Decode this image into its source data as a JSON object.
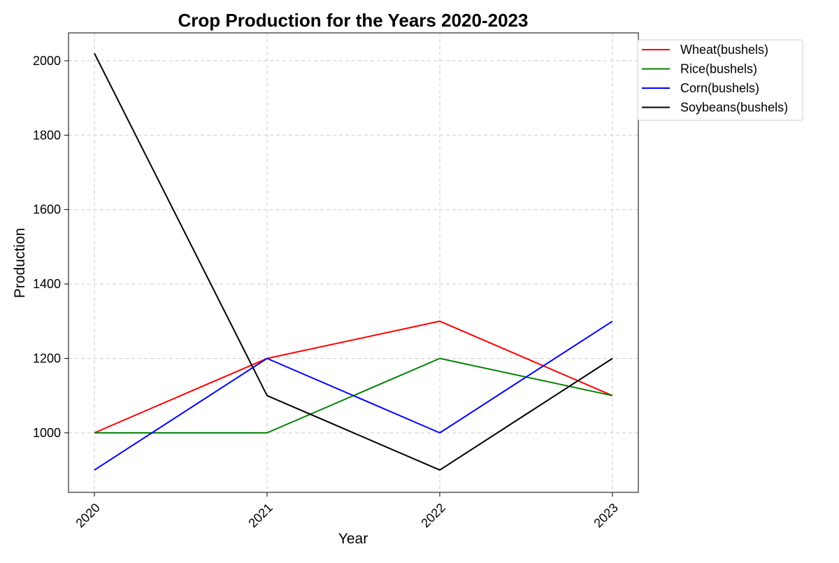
{
  "chart_data": {
    "type": "line",
    "title": "Crop Production for the Years 2020-2023",
    "xlabel": "Year",
    "ylabel": "Production",
    "categories": [
      "2020",
      "2021",
      "2022",
      "2023"
    ],
    "ylim": [
      840,
      2075
    ],
    "yticks": [
      1000,
      1200,
      1400,
      1600,
      1800,
      2000
    ],
    "grid": true,
    "legend_position": "top-right",
    "series": [
      {
        "name": "Wheat(bushels)",
        "color": "#ff0000",
        "values": [
          1000,
          1200,
          1300,
          1100
        ]
      },
      {
        "name": "Rice(bushels)",
        "color": "#008000",
        "values": [
          1000,
          1000,
          1200,
          1100
        ]
      },
      {
        "name": "Corn(bushels)",
        "color": "#0000ff",
        "values": [
          900,
          1200,
          1000,
          1300
        ]
      },
      {
        "name": "Soybeans(bushels)",
        "color": "#000000",
        "values": [
          2020,
          1100,
          900,
          1200
        ]
      }
    ]
  }
}
